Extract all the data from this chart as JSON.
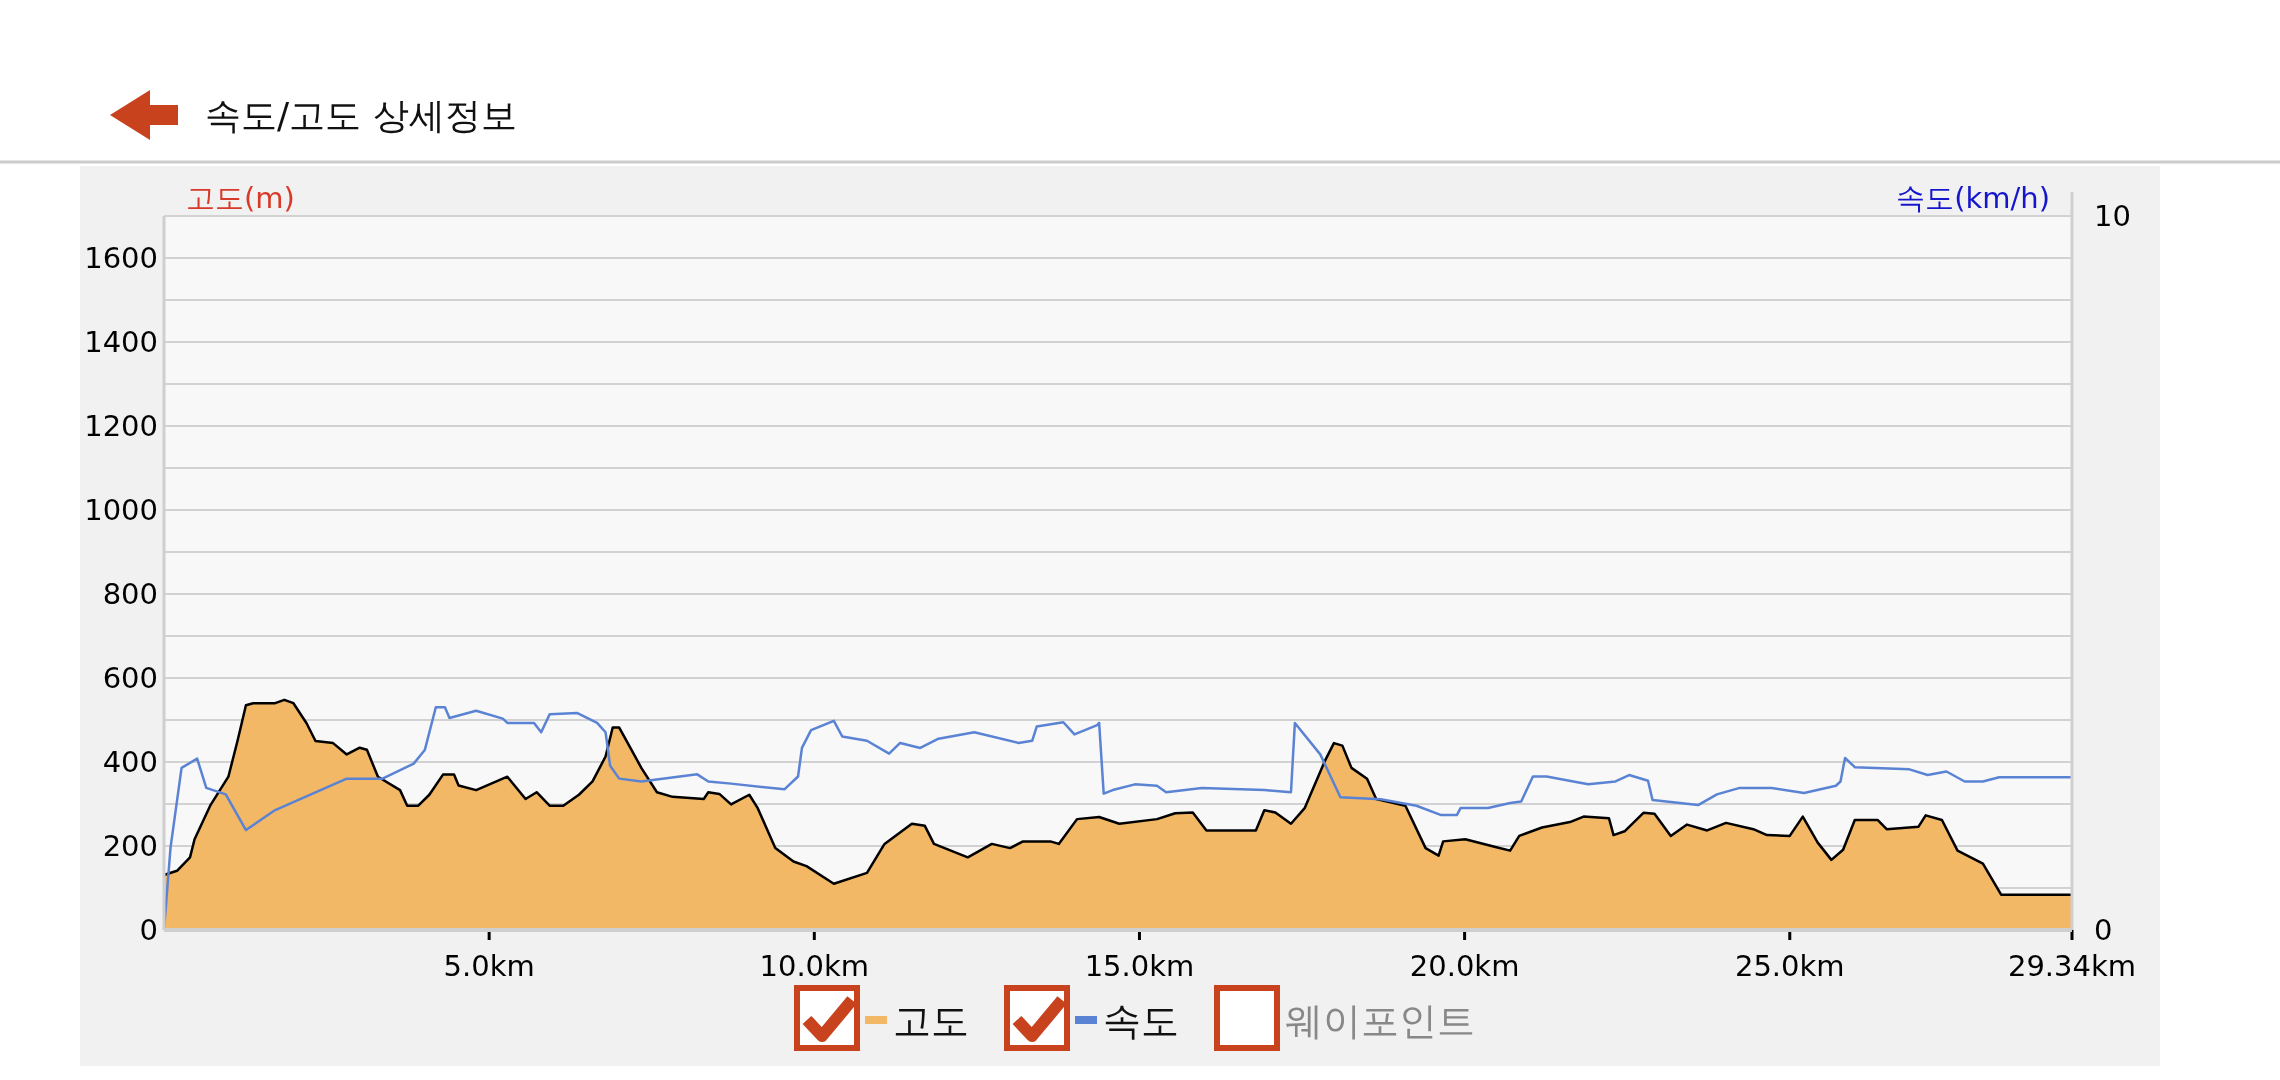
{
  "chart_data": {
    "type": "area",
    "title": "속도/고도 상세정보",
    "ylabel": "고도(m)",
    "y2label": "속도(km/h)",
    "xlim": [
      0,
      29.34
    ],
    "xticks": [
      {
        "value": 5,
        "label": "5.0km"
      },
      {
        "value": 10,
        "label": "10.0km"
      },
      {
        "value": 15,
        "label": "15.0km"
      },
      {
        "value": 20,
        "label": "20.0km"
      },
      {
        "value": 25,
        "label": "25.0km"
      },
      {
        "value": 29.34,
        "label": "29.34km"
      }
    ],
    "ylim": [
      0,
      1700
    ],
    "yticks": [
      0,
      {
        "value": 100,
        "label": null
      },
      200,
      {
        "value": 300,
        "label": null
      },
      400,
      {
        "value": 500,
        "label": null
      },
      600,
      {
        "value": 700,
        "label": null
      },
      800,
      {
        "value": 900,
        "label": null
      },
      1000,
      {
        "value": 1100,
        "label": null
      },
      1200,
      {
        "value": 1300,
        "label": null
      },
      1400,
      {
        "value": 1500,
        "label": null
      },
      1600,
      {
        "value": 1700,
        "label": null
      }
    ],
    "y2lim": [
      0,
      10
    ],
    "y2ticks": [
      0,
      10
    ],
    "grid": "y",
    "legend": "bottom",
    "annotations": [
      "웨이포인트"
    ],
    "series": [
      {
        "name": "고도",
        "color": "#f2b866",
        "x": [
          0,
          0.2,
          0.4,
          0.47,
          0.71,
          0.99,
          1.13,
          1.26,
          1.37,
          1.71,
          1.85,
          1.99,
          2.19,
          2.33,
          2.6,
          2.81,
          3.01,
          3.12,
          3.29,
          3.63,
          3.74,
          3.91,
          4.08,
          4.29,
          4.46,
          4.53,
          4.8,
          5.28,
          5.56,
          5.73,
          5.93,
          6.14,
          6.38,
          6.59,
          6.79,
          6.9,
          7.0,
          7.21,
          7.34,
          7.58,
          7.82,
          8.3,
          8.37,
          8.54,
          8.72,
          9.0,
          9.13,
          9.4,
          9.68,
          9.88,
          10.3,
          10.81,
          11.08,
          11.5,
          11.7,
          11.84,
          12.36,
          12.73,
          13.01,
          13.21,
          13.63,
          13.76,
          14.04,
          14.38,
          14.69,
          15.27,
          15.55,
          15.82,
          16.03,
          16.79,
          16.92,
          17.09,
          17.33,
          17.54,
          17.85,
          17.99,
          18.12,
          18.26,
          18.5,
          18.64,
          19.09,
          19.4,
          19.6,
          19.67,
          20.01,
          20.49,
          20.7,
          20.84,
          21.19,
          21.62,
          21.83,
          22.22,
          22.29,
          22.46,
          22.75,
          22.92,
          23.17,
          23.42,
          23.73,
          24.02,
          24.44,
          24.65,
          25.0,
          25.2,
          25.43,
          25.64,
          25.82,
          26.0,
          26.35,
          26.49,
          26.98,
          27.09,
          27.34,
          27.58,
          27.97,
          28.25,
          29.34
        ],
        "values": [
          131,
          141,
          173,
          216,
          296,
          365,
          450,
          535,
          540,
          540,
          548,
          540,
          493,
          450,
          445,
          418,
          434,
          429,
          365,
          333,
          296,
          296,
          322,
          370,
          370,
          344,
          333,
          365,
          312,
          328,
          296,
          296,
          322,
          354,
          413,
          482,
          482,
          423,
          386,
          328,
          317,
          312,
          328,
          324,
          299,
          322,
          290,
          195,
          163,
          152,
          110,
          136,
          205,
          253,
          248,
          205,
          173,
          205,
          195,
          211,
          211,
          205,
          264,
          269,
          253,
          264,
          278,
          280,
          237,
          237,
          285,
          280,
          253,
          290,
          402,
          445,
          439,
          386,
          360,
          312,
          296,
          195,
          177,
          211,
          216,
          197,
          189,
          224,
          244,
          257,
          270,
          266,
          226,
          235,
          279,
          277,
          224,
          251,
          237,
          255,
          240,
          226,
          224,
          270,
          208,
          167,
          191,
          262,
          262,
          240,
          246,
          273,
          262,
          189,
          158,
          84,
          84
        ]
      },
      {
        "name": "속도",
        "type": "line",
        "axis": "y2",
        "color": "#5b83d4",
        "x": [
          0,
          0.1,
          0.27,
          0.51,
          0.65,
          0.95,
          1.26,
          1.71,
          2.81,
          3.36,
          3.84,
          4.01,
          4.18,
          4.32,
          4.39,
          4.8,
          5.21,
          5.28,
          5.69,
          5.8,
          5.93,
          6.35,
          6.66,
          6.79,
          6.86,
          7.0,
          7.34,
          8.2,
          8.37,
          8.72,
          9.54,
          9.75,
          9.81,
          9.95,
          10.3,
          10.43,
          10.81,
          11.15,
          11.32,
          11.63,
          11.91,
          12.46,
          13.14,
          13.35,
          13.42,
          13.83,
          14.0,
          14.35,
          14.38,
          14.45,
          14.59,
          14.93,
          15.27,
          15.41,
          15.96,
          16.92,
          17.33,
          17.39,
          17.78,
          18.09,
          18.71,
          19.26,
          19.64,
          19.88,
          19.94,
          20.36,
          20.7,
          20.87,
          21.05,
          21.26,
          21.9,
          22.32,
          22.53,
          22.82,
          22.89,
          23.59,
          23.88,
          24.23,
          24.72,
          25.22,
          25.71,
          25.78,
          25.85,
          26.0,
          26.84,
          27.12,
          27.41,
          27.69,
          27.97,
          28.22,
          29.34
        ],
        "values": [
          0,
          1.15,
          2.27,
          2.4,
          1.99,
          1.9,
          1.4,
          1.68,
          2.12,
          2.12,
          2.33,
          2.52,
          3.12,
          3.12,
          2.97,
          3.07,
          2.96,
          2.9,
          2.9,
          2.77,
          3.02,
          3.04,
          2.9,
          2.77,
          2.3,
          2.12,
          2.08,
          2.18,
          2.08,
          2.05,
          1.97,
          2.15,
          2.55,
          2.8,
          2.93,
          2.71,
          2.65,
          2.47,
          2.62,
          2.55,
          2.68,
          2.77,
          2.62,
          2.65,
          2.85,
          2.91,
          2.74,
          2.87,
          2.9,
          1.91,
          1.96,
          2.04,
          2.02,
          1.93,
          1.99,
          1.96,
          1.93,
          2.9,
          2.46,
          1.86,
          1.83,
          1.74,
          1.61,
          1.61,
          1.71,
          1.71,
          1.78,
          1.8,
          2.15,
          2.15,
          2.04,
          2.08,
          2.17,
          2.09,
          1.82,
          1.75,
          1.9,
          1.99,
          1.99,
          1.92,
          2.02,
          2.08,
          2.41,
          2.28,
          2.25,
          2.17,
          2.22,
          2.08,
          2.08,
          2.14,
          2.14
        ]
      }
    ]
  }
}
